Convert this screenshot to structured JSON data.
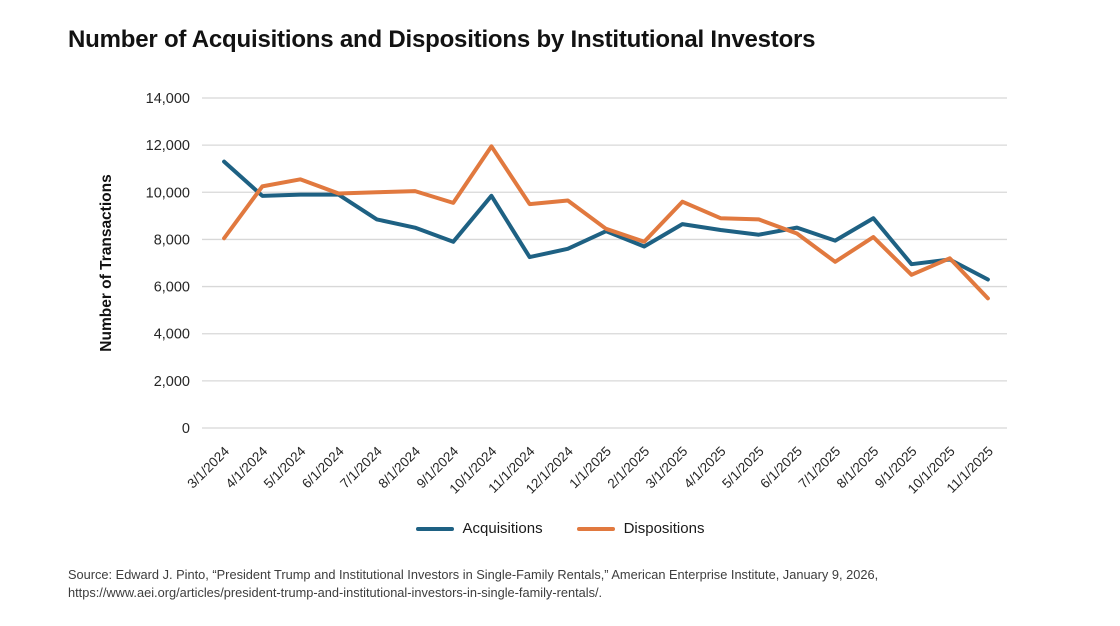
{
  "page": {
    "title": "Number of Acquisitions and Dispositions by Institutional Investors"
  },
  "legend": {
    "items": [
      {
        "label": "Acquisitions",
        "color": "#1E6183"
      },
      {
        "label": "Dispositions",
        "color": "#E1793F"
      }
    ]
  },
  "source": {
    "line1": "Source: Edward J. Pinto, “President Trump and Institutional Investors in Single-Family Rentals,” American Enterprise Institute, January 9, 2026,",
    "line2": "https://www.aei.org/articles/president-trump-and-institutional-investors-in-single-family-rentals/."
  },
  "chart_data": {
    "type": "line",
    "title": "Number of Acquisitions and Dispositions by Institutional Investors",
    "xlabel": "",
    "ylabel": "Number of Transactions",
    "ylim": [
      0,
      14000
    ],
    "ytick_step": 2000,
    "ytick_labels": [
      "0",
      "2,000",
      "4,000",
      "6,000",
      "8,000",
      "10,000",
      "12,000",
      "14,000"
    ],
    "grid": true,
    "legend_position": "bottom",
    "grid_color": "#d8d8d8",
    "tick_label_color": "#262626",
    "categories": [
      "3/1/2024",
      "4/1/2024",
      "5/1/2024",
      "6/1/2024",
      "7/1/2024",
      "8/1/2024",
      "9/1/2024",
      "10/1/2024",
      "11/1/2024",
      "12/1/2024",
      "1/1/2025",
      "2/1/2025",
      "3/1/2025",
      "4/1/2025",
      "5/1/2025",
      "6/1/2025",
      "7/1/2025",
      "8/1/2025",
      "9/1/2025",
      "10/1/2025",
      "11/1/2025"
    ],
    "series": [
      {
        "name": "Acquisitions",
        "color": "#1E6183",
        "values": [
          11300,
          9850,
          9900,
          9900,
          8850,
          8500,
          7900,
          9850,
          7250,
          7600,
          8350,
          7700,
          8650,
          8400,
          8200,
          8500,
          7950,
          8900,
          6950,
          7150,
          6300
        ]
      },
      {
        "name": "Dispositions",
        "color": "#E1793F",
        "values": [
          8050,
          10250,
          10550,
          9950,
          10000,
          10050,
          9550,
          11950,
          9500,
          9650,
          8450,
          7900,
          9600,
          8900,
          8850,
          8250,
          7050,
          8100,
          6500,
          7200,
          5500
        ]
      }
    ]
  }
}
